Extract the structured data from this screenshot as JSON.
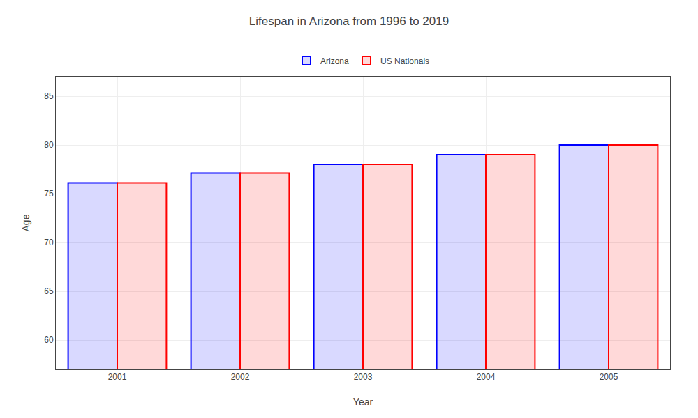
{
  "chart_data": {
    "type": "bar",
    "title": "Lifespan in Arizona from 1996 to 2019",
    "xlabel": "Year",
    "ylabel": "Age",
    "categories": [
      "2001",
      "2002",
      "2003",
      "2004",
      "2005"
    ],
    "series": [
      {
        "name": "Arizona",
        "color": "#0000ff",
        "values": [
          76.1,
          77.1,
          78.0,
          79.0,
          80.0
        ]
      },
      {
        "name": "US Nationals",
        "color": "#ff0000",
        "values": [
          76.1,
          77.1,
          78.0,
          79.0,
          80.0
        ]
      }
    ],
    "ylim": [
      57,
      87
    ],
    "yticks": [
      60,
      65,
      70,
      75,
      80,
      85
    ],
    "grid": true,
    "legend": "upper center"
  }
}
